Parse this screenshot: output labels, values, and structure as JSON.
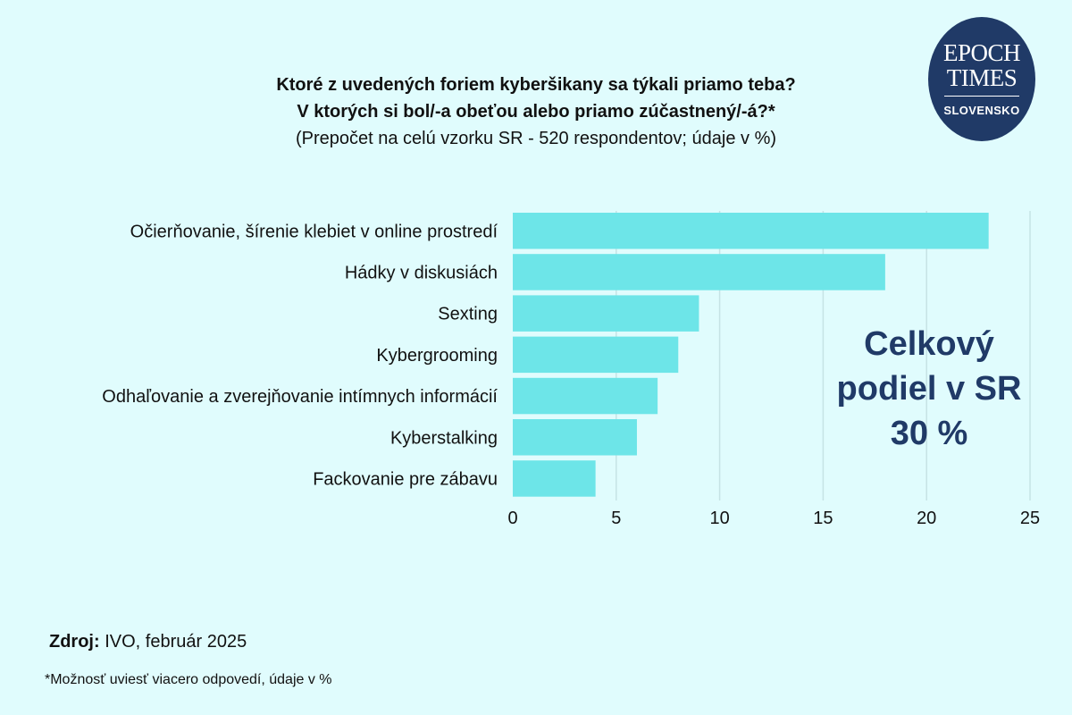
{
  "chart_data": {
    "type": "bar",
    "orientation": "horizontal",
    "title": "Ktoré z uvedených foriem kyberšikany sa týkali priamo teba?",
    "title_line2": "V ktorých si bol/-a obeťou alebo priamo zúčastnený/-á?*",
    "subtitle": "(Prepočet na celú vzorku SR - 520 respondentov; údaje v %)",
    "categories": [
      "Očierňovanie, šírenie klebiet v online prostredí",
      "Hádky v diskusiách",
      "Sexting",
      "Kybergrooming",
      "Odhaľovanie a zverejňovanie intímnych informácií",
      "Kyberstalking",
      "Fackovanie pre zábavu"
    ],
    "values": [
      23,
      18,
      9,
      8,
      7,
      6,
      4
    ],
    "xlim": [
      0,
      25
    ],
    "xticks": [
      "0",
      "5",
      "10",
      "15",
      "20",
      "25"
    ],
    "grid": "vertical",
    "bar_color": "#6de5e8",
    "annotation": {
      "line1": "Celkový",
      "line2": "podiel v SR",
      "line3": "30 %"
    }
  },
  "logo": {
    "line1": "EPOCH",
    "line2": "TIMES",
    "line3": "SLOVENSKO"
  },
  "source": {
    "label": "Zdroj:",
    "text": "IVO, február 2025"
  },
  "footnote": "*Možnosť uviesť viacero odpovedí, údaje v %",
  "colors": {
    "background": "#e0fcfd",
    "accent": "#203a67",
    "bar": "#6de5e8",
    "grid": "#c6e3e5"
  }
}
